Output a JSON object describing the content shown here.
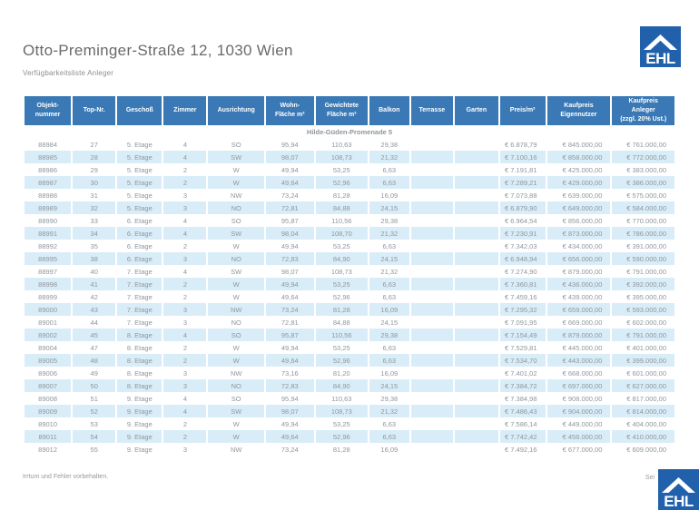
{
  "page": {
    "title": "Otto-Preminger-Straße 12, 1030 Wien",
    "subtitle": "Verfügbarkeitsliste Anleger",
    "footer_left": "Irrtum und Fehler vorbehalten.",
    "footer_right": "Sei",
    "logo_text": "EHL"
  },
  "colors": {
    "header_blue": "#3a79b5",
    "stripe_blue": "#d9edf8",
    "section_gray": "#9b9b9b",
    "logo_blue": "#2161ac",
    "data_text": "#8f969b"
  },
  "table": {
    "columns": [
      "Objekt-\nnummer",
      "Top-Nr.",
      "Geschoß",
      "Zimmer",
      "Ausrichtung",
      "Wohn-\nFläche m²",
      "Gewichtete\nFläche m²",
      "Balkon",
      "Terrasse",
      "Garten",
      "Preis/m²",
      "Kaufpreis\nEigennutzer",
      "Kaufpreis\nAnleger\n(zzgl. 20% Ust.)"
    ],
    "section": "Hilde-Güden-Promenade 5",
    "rows": [
      [
        "88984",
        "27",
        "5. Etage",
        "4",
        "SO",
        "95,94",
        "110,63",
        "29,38",
        "",
        "",
        "€ 6.878,79",
        "€ 845.000,00",
        "€ 761.000,00"
      ],
      [
        "88985",
        "28",
        "5. Etage",
        "4",
        "SW",
        "98,07",
        "108,73",
        "21,32",
        "",
        "",
        "€ 7.100,16",
        "€ 858.000,00",
        "€ 772.000,00"
      ],
      [
        "88986",
        "29",
        "5. Etage",
        "2",
        "W",
        "49,94",
        "53,25",
        "6,63",
        "",
        "",
        "€ 7.191,81",
        "€ 425.000,00",
        "€ 383.000,00"
      ],
      [
        "88987",
        "30",
        "5. Etage",
        "2",
        "W",
        "49,64",
        "52,96",
        "6,63",
        "",
        "",
        "€ 7.289,21",
        "€ 429.000,00",
        "€ 386.000,00"
      ],
      [
        "88988",
        "31",
        "5. Etage",
        "3",
        "NW",
        "73,24",
        "81,28",
        "16,09",
        "",
        "",
        "€ 7.073,88",
        "€ 639.000,00",
        "€ 575.000,00"
      ],
      [
        "88989",
        "32",
        "5. Etage",
        "3",
        "NO",
        "72,81",
        "84,88",
        "24,15",
        "",
        "",
        "€ 6.879,90",
        "€ 649.000,00",
        "€ 584.000,00"
      ],
      [
        "88990",
        "33",
        "6. Etage",
        "4",
        "SO",
        "95,87",
        "110,56",
        "29,38",
        "",
        "",
        "€ 6.964,54",
        "€ 856.000,00",
        "€ 770.000,00"
      ],
      [
        "88991",
        "34",
        "6. Etage",
        "4",
        "SW",
        "98,04",
        "108,70",
        "21,32",
        "",
        "",
        "€ 7.230,91",
        "€ 873.000,00",
        "€ 786.000,00"
      ],
      [
        "88992",
        "35",
        "6. Etage",
        "2",
        "W",
        "49,94",
        "53,25",
        "6,63",
        "",
        "",
        "€ 7.342,03",
        "€ 434.000,00",
        "€ 391.000,00"
      ],
      [
        "88995",
        "38",
        "6. Etage",
        "3",
        "NO",
        "72,83",
        "84,90",
        "24,15",
        "",
        "",
        "€ 6.948,94",
        "€ 656.000,00",
        "€ 590.000,00"
      ],
      [
        "88997",
        "40",
        "7. Etage",
        "4",
        "SW",
        "98,07",
        "108,73",
        "21,32",
        "",
        "",
        "€ 7.274,90",
        "€ 879.000,00",
        "€ 791.000,00"
      ],
      [
        "88998",
        "41",
        "7. Etage",
        "2",
        "W",
        "49,94",
        "53,25",
        "6,63",
        "",
        "",
        "€ 7.360,81",
        "€ 436.000,00",
        "€ 392.000,00"
      ],
      [
        "88999",
        "42",
        "7. Etage",
        "2",
        "W",
        "49,64",
        "52,96",
        "6,63",
        "",
        "",
        "€ 7.459,16",
        "€ 439.000,00",
        "€ 395.000,00"
      ],
      [
        "89000",
        "43",
        "7. Etage",
        "3",
        "NW",
        "73,24",
        "81,28",
        "16,09",
        "",
        "",
        "€ 7.295,32",
        "€ 659.000,00",
        "€ 593.000,00"
      ],
      [
        "89001",
        "44",
        "7. Etage",
        "3",
        "NO",
        "72,81",
        "84,88",
        "24,15",
        "",
        "",
        "€ 7.091,95",
        "€ 669.000,00",
        "€ 602.000,00"
      ],
      [
        "89002",
        "45",
        "8. Etage",
        "4",
        "SO",
        "95,87",
        "110,56",
        "29,38",
        "",
        "",
        "€ 7.154,49",
        "€ 879.000,00",
        "€ 791.000,00"
      ],
      [
        "89004",
        "47",
        "8. Etage",
        "2",
        "W",
        "49,94",
        "53,25",
        "6,63",
        "",
        "",
        "€ 7.529,81",
        "€ 445.000,00",
        "€ 401.000,00"
      ],
      [
        "89005",
        "48",
        "8. Etage",
        "2",
        "W",
        "49,64",
        "52,96",
        "6,63",
        "",
        "",
        "€ 7.534,70",
        "€ 443.000,00",
        "€ 399.000,00"
      ],
      [
        "89006",
        "49",
        "8. Etage",
        "3",
        "NW",
        "73,16",
        "81,20",
        "16,09",
        "",
        "",
        "€ 7.401,02",
        "€ 668.000,00",
        "€ 601.000,00"
      ],
      [
        "89007",
        "50",
        "8. Etage",
        "3",
        "NO",
        "72,83",
        "84,90",
        "24,15",
        "",
        "",
        "€ 7.384,72",
        "€ 697.000,00",
        "€ 627.000,00"
      ],
      [
        "89008",
        "51",
        "9. Etage",
        "4",
        "SO",
        "95,94",
        "110,63",
        "29,38",
        "",
        "",
        "€ 7.384,98",
        "€ 908.000,00",
        "€ 817.000,00"
      ],
      [
        "89009",
        "52",
        "9. Etage",
        "4",
        "SW",
        "98,07",
        "108,73",
        "21,32",
        "",
        "",
        "€ 7.486,43",
        "€ 904.000,00",
        "€ 814.000,00"
      ],
      [
        "89010",
        "53",
        "9. Etage",
        "2",
        "W",
        "49,94",
        "53,25",
        "6,63",
        "",
        "",
        "€ 7.586,14",
        "€ 449.000,00",
        "€ 404.000,00"
      ],
      [
        "89011",
        "54",
        "9. Etage",
        "2",
        "W",
        "49,64",
        "52,96",
        "6,63",
        "",
        "",
        "€ 7.742,42",
        "€ 456.000,00",
        "€ 410.000,00"
      ],
      [
        "89012",
        "55",
        "9. Etage",
        "3",
        "NW",
        "73,24",
        "81,28",
        "16,09",
        "",
        "",
        "€ 7.492,16",
        "€ 677.000,00",
        "€ 609.000,00"
      ]
    ]
  }
}
